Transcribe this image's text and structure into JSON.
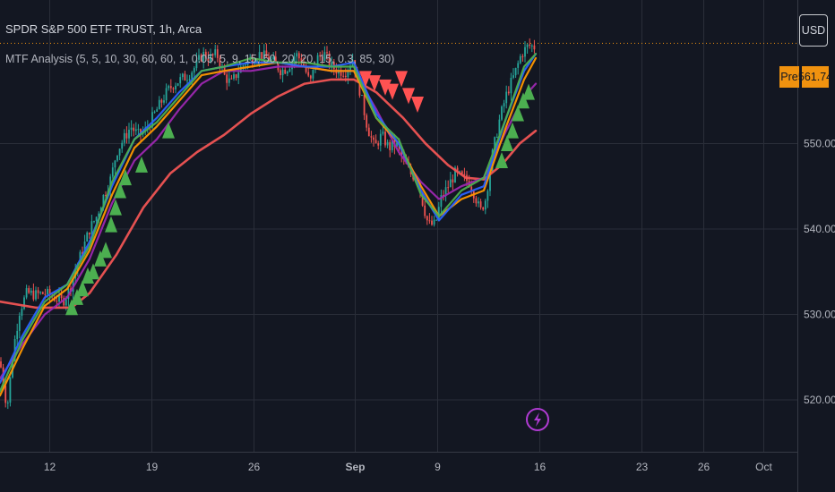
{
  "header": {
    "symbol_title": "SPDR S&P 500 ETF TRUST, 1h, Arca",
    "indicator_label": "MTF Analysis (5, 5, 10, 30, 60, 60, 1, 0.05, 5, 9, 15, 50, 20, 20, 15, 0.3, 85, 30)"
  },
  "toolbar": {
    "currency_label": "USD"
  },
  "price_tag": {
    "session_label": "Pre",
    "value": "561.74"
  },
  "colors": {
    "background": "#131722",
    "grid": "#2a2e39",
    "up_candle": "#26a69a",
    "down_candle": "#ef5350",
    "ma_red": "#f05454",
    "ma_orange": "#ff9800",
    "ma_purple": "#9c27b0",
    "ma_blue": "#2962ff",
    "ma_green": "#4caf50",
    "buy_signal": "#4caf50",
    "sell_signal": "#ff5252",
    "price_tag": "#f0920f",
    "event_icon": "#b03bd3"
  },
  "icons": {
    "event_marker": "lightning-bolt-icon"
  },
  "chart_data": {
    "type": "line",
    "title": "SPDR S&P 500 ETF TRUST, 1h, Arca",
    "xlabel": "",
    "ylabel": "",
    "ylim": [
      516.5,
      563.5
    ],
    "yticks": [
      520,
      530,
      540,
      550
    ],
    "y_tick_labels": [
      "520.00",
      "530.00",
      "540.00",
      "550.00"
    ],
    "x_tick_labels": [
      "12",
      "19",
      "26",
      "Sep",
      "9",
      "16",
      "23",
      "26",
      "Oct"
    ],
    "x_tick_positions": [
      55.5,
      169.5,
      283.5,
      396.5,
      488.5,
      602.5,
      716.5,
      785.5,
      852.5
    ],
    "x_span": [
      0,
      890
    ],
    "grid": true,
    "legend": "top-left",
    "last_price": 561.74,
    "price": [
      [
        0,
        524.5
      ],
      [
        8,
        519.0
      ],
      [
        15,
        526.0
      ],
      [
        22,
        530.5
      ],
      [
        30,
        532.5
      ],
      [
        40,
        532.3
      ],
      [
        50,
        532.5
      ],
      [
        60,
        532.0
      ],
      [
        70,
        531.5
      ],
      [
        78,
        533.0
      ],
      [
        85,
        535.5
      ],
      [
        92,
        537.5
      ],
      [
        100,
        540.0
      ],
      [
        108,
        541.5
      ],
      [
        116,
        544.0
      ],
      [
        124,
        546.0
      ],
      [
        130,
        549.0
      ],
      [
        138,
        550.5
      ],
      [
        146,
        552.0
      ],
      [
        154,
        551.0
      ],
      [
        162,
        551.5
      ],
      [
        170,
        553.0
      ],
      [
        178,
        554.5
      ],
      [
        186,
        556.0
      ],
      [
        194,
        557.0
      ],
      [
        202,
        557.5
      ],
      [
        210,
        558.0
      ],
      [
        218,
        559.0
      ],
      [
        226,
        560.5
      ],
      [
        234,
        560.0
      ],
      [
        242,
        560.5
      ],
      [
        250,
        558.0
      ],
      [
        258,
        557.0
      ],
      [
        266,
        558.5
      ],
      [
        274,
        559.5
      ],
      [
        282,
        560.0
      ],
      [
        290,
        560.5
      ],
      [
        298,
        560.0
      ],
      [
        306,
        559.5
      ],
      [
        314,
        558.5
      ],
      [
        322,
        559.0
      ],
      [
        330,
        560.5
      ],
      [
        338,
        559.5
      ],
      [
        346,
        557.0
      ],
      [
        354,
        560.0
      ],
      [
        362,
        560.5
      ],
      [
        370,
        559.0
      ],
      [
        378,
        558.5
      ],
      [
        386,
        558.5
      ],
      [
        394,
        560.0
      ],
      [
        402,
        556.0
      ],
      [
        410,
        552.0
      ],
      [
        418,
        549.5
      ],
      [
        426,
        551.0
      ],
      [
        434,
        549.5
      ],
      [
        442,
        550.0
      ],
      [
        450,
        548.0
      ],
      [
        458,
        546.5
      ],
      [
        466,
        546.0
      ],
      [
        472,
        543.0
      ],
      [
        478,
        540.5
      ],
      [
        486,
        540.5
      ],
      [
        492,
        543.5
      ],
      [
        500,
        545.0
      ],
      [
        508,
        546.5
      ],
      [
        516,
        546.0
      ],
      [
        524,
        545.5
      ],
      [
        530,
        544.0
      ],
      [
        536,
        542.0
      ],
      [
        542,
        543.5
      ],
      [
        550,
        549.0
      ],
      [
        558,
        553.0
      ],
      [
        566,
        556.0
      ],
      [
        574,
        558.0
      ],
      [
        582,
        560.5
      ],
      [
        590,
        561.5
      ],
      [
        597,
        561.3
      ]
    ],
    "series": [
      {
        "color": "#f05454",
        "values": [
          [
            0,
            531.5
          ],
          [
            40,
            530.8
          ],
          [
            80,
            530.8
          ],
          [
            100,
            532.5
          ],
          [
            130,
            537.0
          ],
          [
            160,
            542.5
          ],
          [
            190,
            546.5
          ],
          [
            220,
            549.0
          ],
          [
            250,
            551.0
          ],
          [
            280,
            553.5
          ],
          [
            310,
            555.5
          ],
          [
            340,
            557.0
          ],
          [
            370,
            557.5
          ],
          [
            395,
            557.5
          ],
          [
            420,
            556.0
          ],
          [
            450,
            553.0
          ],
          [
            475,
            550.0
          ],
          [
            500,
            547.5
          ],
          [
            520,
            546.0
          ],
          [
            540,
            545.8
          ],
          [
            560,
            547.5
          ],
          [
            580,
            550.0
          ],
          [
            598,
            551.5
          ]
        ]
      },
      {
        "color": "#9c27b0",
        "values": [
          [
            0,
            522.5
          ],
          [
            25,
            526.5
          ],
          [
            50,
            530.0
          ],
          [
            75,
            532.0
          ],
          [
            100,
            536.5
          ],
          [
            125,
            543.0
          ],
          [
            150,
            548.0
          ],
          [
            175,
            550.5
          ],
          [
            200,
            554.0
          ],
          [
            225,
            557.0
          ],
          [
            250,
            558.5
          ],
          [
            280,
            558.5
          ],
          [
            310,
            559.0
          ],
          [
            340,
            559.0
          ],
          [
            370,
            558.5
          ],
          [
            395,
            558.5
          ],
          [
            420,
            554.0
          ],
          [
            445,
            549.0
          ],
          [
            470,
            545.5
          ],
          [
            490,
            543.5
          ],
          [
            515,
            545.0
          ],
          [
            540,
            546.0
          ],
          [
            565,
            551.5
          ],
          [
            585,
            555.5
          ],
          [
            598,
            557.0
          ]
        ]
      },
      {
        "color": "#ff9800",
        "values": [
          [
            0,
            520.5
          ],
          [
            25,
            526.0
          ],
          [
            50,
            531.0
          ],
          [
            75,
            533.0
          ],
          [
            100,
            537.5
          ],
          [
            125,
            544.0
          ],
          [
            150,
            549.5
          ],
          [
            175,
            552.0
          ],
          [
            200,
            555.0
          ],
          [
            225,
            558.0
          ],
          [
            250,
            558.5
          ],
          [
            280,
            559.0
          ],
          [
            310,
            559.5
          ],
          [
            340,
            559.0
          ],
          [
            370,
            558.5
          ],
          [
            395,
            558.5
          ],
          [
            420,
            553.0
          ],
          [
            445,
            550.0
          ],
          [
            470,
            545.0
          ],
          [
            490,
            541.5
          ],
          [
            515,
            543.5
          ],
          [
            540,
            544.5
          ],
          [
            565,
            552.0
          ],
          [
            585,
            557.5
          ],
          [
            598,
            560.0
          ]
        ]
      },
      {
        "color": "#2962ff",
        "values": [
          [
            0,
            522.0
          ],
          [
            25,
            527.5
          ],
          [
            50,
            532.0
          ],
          [
            75,
            533.5
          ],
          [
            100,
            538.5
          ],
          [
            125,
            545.0
          ],
          [
            150,
            550.5
          ],
          [
            175,
            553.0
          ],
          [
            200,
            556.0
          ],
          [
            225,
            558.5
          ],
          [
            250,
            559.0
          ],
          [
            280,
            559.5
          ],
          [
            310,
            559.5
          ],
          [
            340,
            559.0
          ],
          [
            370,
            559.0
          ],
          [
            395,
            559.5
          ],
          [
            420,
            553.5
          ],
          [
            445,
            550.0
          ],
          [
            470,
            544.5
          ],
          [
            490,
            541.0
          ],
          [
            515,
            544.0
          ],
          [
            540,
            545.0
          ],
          [
            565,
            553.0
          ],
          [
            585,
            558.5
          ],
          [
            598,
            560.5
          ]
        ]
      },
      {
        "color": "#4caf50",
        "values": [
          [
            0,
            521.0
          ],
          [
            25,
            527.0
          ],
          [
            50,
            531.5
          ],
          [
            75,
            533.5
          ],
          [
            100,
            538.0
          ],
          [
            125,
            545.5
          ],
          [
            150,
            550.5
          ],
          [
            175,
            552.5
          ],
          [
            200,
            555.5
          ],
          [
            225,
            558.5
          ],
          [
            250,
            559.0
          ],
          [
            280,
            560.0
          ],
          [
            310,
            559.5
          ],
          [
            340,
            559.5
          ],
          [
            370,
            559.0
          ],
          [
            395,
            559.0
          ],
          [
            420,
            553.0
          ],
          [
            445,
            550.5
          ],
          [
            470,
            544.0
          ],
          [
            490,
            541.5
          ],
          [
            515,
            544.5
          ],
          [
            540,
            546.0
          ],
          [
            565,
            553.0
          ],
          [
            585,
            559.0
          ],
          [
            598,
            560.5
          ]
        ]
      }
    ],
    "buy_signals": [
      [
        80,
        531.8
      ],
      [
        86,
        533.0
      ],
      [
        92,
        534.0
      ],
      [
        98,
        535.5
      ],
      [
        104,
        536.0
      ],
      [
        112,
        537.5
      ],
      [
        118,
        538.5
      ],
      [
        124,
        541.5
      ],
      [
        129,
        543.5
      ],
      [
        134,
        545.5
      ],
      [
        140,
        547.0
      ],
      [
        158,
        548.5
      ],
      [
        188,
        552.5
      ],
      [
        560,
        549.0
      ],
      [
        566,
        551.0
      ],
      [
        572,
        552.5
      ],
      [
        578,
        554.5
      ],
      [
        584,
        556.0
      ],
      [
        590,
        557.0
      ]
    ],
    "sell_signals": [
      [
        408,
        558.5
      ],
      [
        418,
        558.0
      ],
      [
        430,
        557.5
      ],
      [
        438,
        557.0
      ],
      [
        448,
        558.5
      ],
      [
        456,
        556.5
      ],
      [
        466,
        555.5
      ]
    ],
    "event_marker": {
      "x": 600,
      "y": 517.7
    }
  }
}
